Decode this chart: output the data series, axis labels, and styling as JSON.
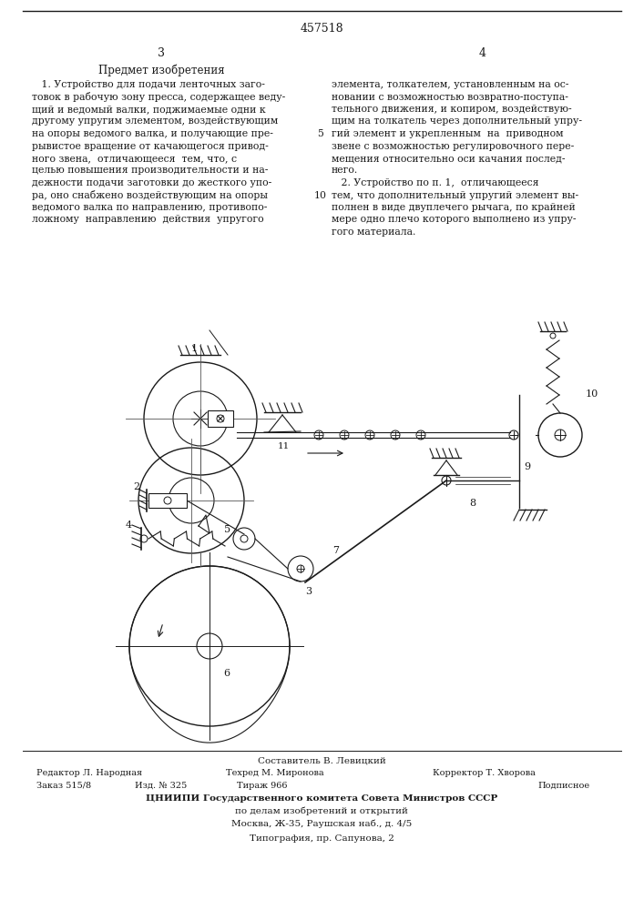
{
  "patent_number": "457518",
  "page_left": "3",
  "page_right": "4",
  "section_title": "Предмет изобретения",
  "footer_composer": "Составитель В. Левицкий",
  "footer_editor": "Редактор Л. Народная",
  "footer_tech": "Техред М. Миронова",
  "footer_corrector": "Корректор Т. Хворова",
  "footer_order": "Заказ 515/8",
  "footer_izd": "Изд. № 325",
  "footer_tirazh": "Тираж 966",
  "footer_podpisnoe": "Подписное",
  "footer_tsniipи": "ЦНИИПИ Государственного комитета Совета Министров СССР",
  "footer_address1": "по делам изобретений и открытий",
  "footer_address2": "Москва, Ж-35, Раушская наб., д. 4/5",
  "footer_tipografia": "Типография, пр. Сапунова, 2",
  "bg_color": "#ffffff",
  "text_color": "#1a1a1a"
}
